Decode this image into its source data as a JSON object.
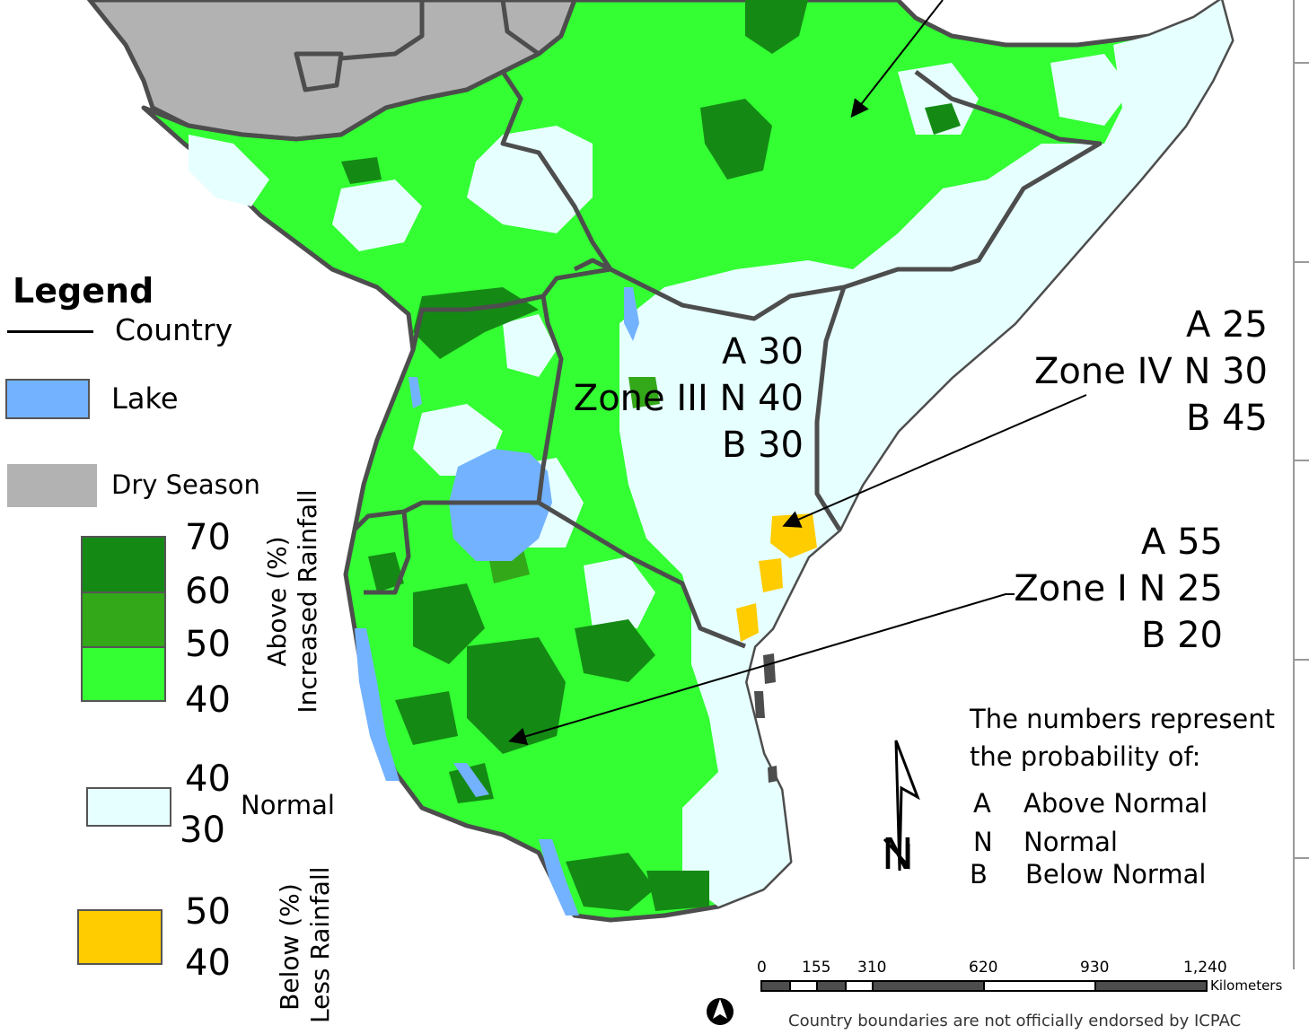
{
  "colors": {
    "dry": "#b2b2b2",
    "above_40": "#33ff33",
    "above_50": "#33a819",
    "above_60": "#148a14",
    "normal": "#e6ffff",
    "below": "#ffcc00",
    "lake": "#73b2ff",
    "border": "#4d4d4d"
  },
  "legend": {
    "title": "Legend",
    "country": "Country",
    "lake": "Lake",
    "dry": "Dry Season",
    "above_values": [
      "70",
      "60",
      "50",
      "40"
    ],
    "above_label_1": "Above (%)",
    "above_label_2": "Increased Rainfall",
    "normal_values": [
      "40",
      "30"
    ],
    "normal_label": "Normal",
    "below_values": [
      "50",
      "40"
    ],
    "below_label_1": "Below (%)",
    "below_label_2": "Less Rainfall"
  },
  "zones": [
    {
      "prefix": "",
      "lines": [
        "A 30",
        "Zone III N 40",
        "B 30"
      ]
    },
    {
      "prefix": "",
      "lines": [
        "A 25",
        "Zone IV N 30",
        "B 45"
      ]
    },
    {
      "prefix": "",
      "lines": [
        "A 55",
        "Zone I N 25",
        "B 20"
      ]
    }
  ],
  "explanation": {
    "line1": "The numbers represent",
    "line2": "the probability of:",
    "items": [
      {
        "code": "A",
        "label": "Above Normal"
      },
      {
        "code": "N",
        "label": "Normal"
      },
      {
        "code": "B",
        "label": "Below Normal"
      }
    ]
  },
  "north_letter": "N",
  "scalebar": {
    "ticks": [
      "0",
      "155",
      "310",
      "620",
      "930",
      "1,240"
    ],
    "unit": "Kilometers"
  },
  "disclaimer": "Country boundaries are not officially endorsed by ICPAC"
}
